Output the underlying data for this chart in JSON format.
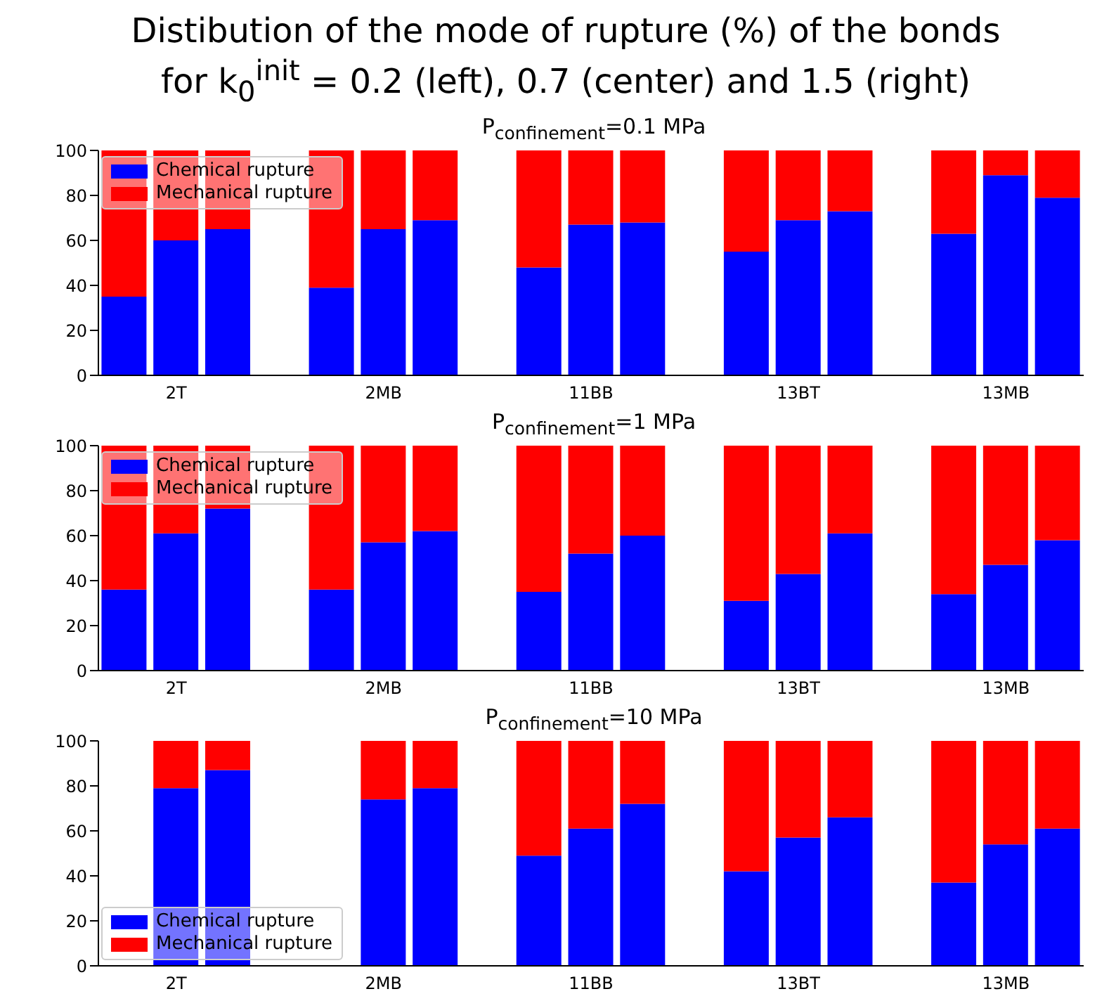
{
  "chart_data": [
    {
      "type": "bar",
      "title": "Distibution of the mode of rupture (%) of the bonds for k$_{0}$$^{init}$ = 0.2 (left), 0.7 (center) and 1.5 (right)",
      "subtitle": "P$_{confinement}$=0.1 MPa",
      "stacked": true,
      "categories": [
        null,
        "2T",
        null,
        null,
        null,
        "2MB",
        null,
        null,
        null,
        "11BB",
        null,
        null,
        null,
        "13BT",
        null,
        null,
        null,
        "13MB",
        null
      ],
      "series": [
        {
          "name": "Chemical rupture",
          "color": "#0000ff",
          "values": [
            35,
            60,
            65,
            null,
            39,
            65,
            69,
            null,
            48,
            67,
            68,
            null,
            55,
            69,
            73,
            null,
            63,
            89,
            79
          ]
        },
        {
          "name": "Mechanical rupture",
          "color": "#ff0000",
          "values": [
            65,
            40,
            35,
            null,
            61,
            35,
            31,
            null,
            52,
            33,
            32,
            null,
            45,
            31,
            27,
            null,
            37,
            11,
            21
          ]
        }
      ],
      "ylim": [
        0,
        100
      ],
      "yticks": [
        0,
        20,
        40,
        60,
        80,
        100
      ],
      "grid": false,
      "legend": "top left"
    },
    {
      "type": "bar",
      "title": "P$_{confinement}$=1 MPa",
      "stacked": true,
      "categories": [
        null,
        "2T",
        null,
        null,
        null,
        "2MB",
        null,
        null,
        null,
        "11BB",
        null,
        null,
        null,
        "13BT",
        null,
        null,
        null,
        "13MB",
        null
      ],
      "series": [
        {
          "name": "Chemical rupture",
          "color": "#0000ff",
          "values": [
            36,
            61,
            72,
            null,
            36,
            57,
            62,
            null,
            35,
            52,
            60,
            null,
            31,
            43,
            61,
            null,
            34,
            47,
            58
          ]
        },
        {
          "name": "Mechanical rupture",
          "color": "#ff0000",
          "values": [
            64,
            39,
            28,
            null,
            64,
            43,
            38,
            null,
            65,
            48,
            40,
            null,
            69,
            57,
            39,
            null,
            66,
            53,
            42
          ]
        }
      ],
      "ylim": [
        0,
        100
      ],
      "yticks": [
        0,
        20,
        40,
        60,
        80,
        100
      ],
      "grid": false,
      "legend": "top left"
    },
    {
      "type": "bar",
      "title": "P$_{confinement}$=10 MPa",
      "stacked": true,
      "categories": [
        null,
        "2T",
        null,
        null,
        null,
        "2MB",
        null,
        null,
        null,
        "11BB",
        null,
        null,
        null,
        "13BT",
        null,
        null,
        null,
        "13MB",
        null
      ],
      "series": [
        {
          "name": "Chemical rupture",
          "color": "#0000ff",
          "values": [
            null,
            79,
            87,
            null,
            null,
            74,
            79,
            null,
            49,
            61,
            72,
            null,
            42,
            57,
            66,
            null,
            37,
            54,
            61
          ]
        },
        {
          "name": "Mechanical rupture",
          "color": "#ff0000",
          "values": [
            null,
            21,
            13,
            null,
            null,
            26,
            21,
            null,
            51,
            39,
            28,
            null,
            58,
            43,
            34,
            null,
            63,
            46,
            39
          ]
        }
      ],
      "ylim": [
        0,
        100
      ],
      "yticks": [
        0,
        20,
        40,
        60,
        80,
        100
      ],
      "grid": false,
      "legend": "bottom left"
    }
  ]
}
